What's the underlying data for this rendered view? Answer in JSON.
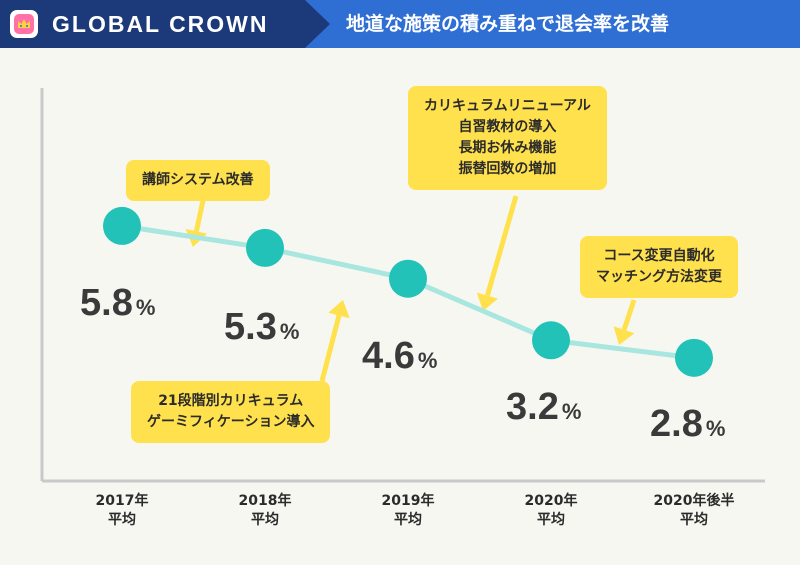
{
  "header": {
    "brand": "GLOBAL CROWN",
    "headline": "地道な施策の積み重ねで退会率を改善",
    "logo_icon": "crown-icon"
  },
  "colors": {
    "header_dark": "#1c3a7a",
    "header_blue": "#2f6fd3",
    "marker": "#22c2b8",
    "line": "#a8e6df",
    "callout": "#ffe14d",
    "arrow": "#ffe14d",
    "background": "#f7f7f2"
  },
  "chart_data": {
    "type": "line",
    "categories": [
      [
        "2017年",
        "平均"
      ],
      [
        "2018年",
        "平均"
      ],
      [
        "2019年",
        "平均"
      ],
      [
        "2020年",
        "平均"
      ],
      [
        "2020年後半",
        "平均"
      ]
    ],
    "values": [
      5.8,
      5.3,
      4.6,
      3.2,
      2.8
    ],
    "value_labels": [
      "5.8",
      "5.3",
      "4.6",
      "3.2",
      "2.8"
    ],
    "unit": "%",
    "ylim": [
      0,
      8.8
    ],
    "grid": false,
    "title": "",
    "xlabel": "",
    "ylabel": ""
  },
  "annotations": [
    {
      "lines": [
        "講師システム改善"
      ]
    },
    {
      "lines": [
        "21段階別カリキュラム",
        "ゲーミフィケーション導入"
      ]
    },
    {
      "lines": [
        "カリキュラムリニューアル",
        "自習教材の導入",
        "長期お休み機能",
        "振替回数の増加"
      ]
    },
    {
      "lines": [
        "コース変更自動化",
        "マッチング方法変更"
      ]
    }
  ]
}
